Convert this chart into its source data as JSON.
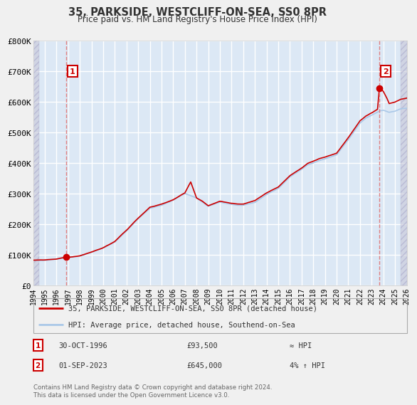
{
  "title": "35, PARKSIDE, WESTCLIFF-ON-SEA, SS0 8PR",
  "subtitle": "Price paid vs. HM Land Registry's House Price Index (HPI)",
  "bg_color": "#e8e8f0",
  "plot_bg_color": "#dce8f5",
  "xmin": 1994,
  "xmax": 2026,
  "ymin": 0,
  "ymax": 800000,
  "yticks": [
    0,
    100000,
    200000,
    300000,
    400000,
    500000,
    600000,
    700000,
    800000
  ],
  "ytick_labels": [
    "£0",
    "£100K",
    "£200K",
    "£300K",
    "£400K",
    "£500K",
    "£600K",
    "£700K",
    "£800K"
  ],
  "xticks": [
    1994,
    1995,
    1996,
    1997,
    1998,
    1999,
    2000,
    2001,
    2002,
    2003,
    2004,
    2005,
    2006,
    2007,
    2008,
    2009,
    2010,
    2011,
    2012,
    2013,
    2014,
    2015,
    2016,
    2017,
    2018,
    2019,
    2020,
    2021,
    2022,
    2023,
    2024,
    2025,
    2026
  ],
  "sale1_x": 1996.83,
  "sale1_y": 93500,
  "sale2_x": 2023.67,
  "sale2_y": 645000,
  "line_color": "#cc0000",
  "hpi_color": "#aac8e8",
  "vline_color": "#e08080",
  "legend_line1": "35, PARKSIDE, WESTCLIFF-ON-SEA, SS0 8PR (detached house)",
  "legend_line2": "HPI: Average price, detached house, Southend-on-Sea",
  "note1_label": "1",
  "note1_date": "30-OCT-1996",
  "note1_price": "£93,500",
  "note1_hpi": "≈ HPI",
  "note2_label": "2",
  "note2_date": "01-SEP-2023",
  "note2_price": "£645,000",
  "note2_hpi": "4% ↑ HPI",
  "footer": "Contains HM Land Registry data © Crown copyright and database right 2024.\nThis data is licensed under the Open Government Licence v3.0."
}
